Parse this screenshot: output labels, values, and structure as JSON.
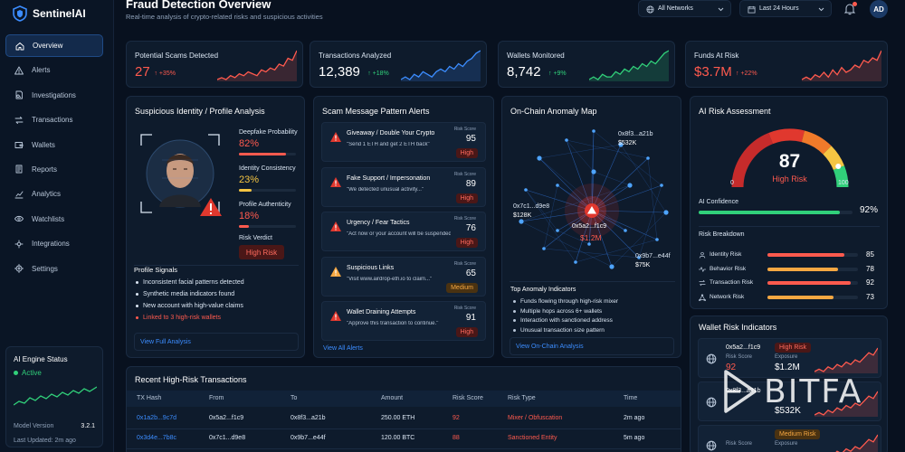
{
  "app": {
    "name": "SentinelAI"
  },
  "nav": [
    {
      "label": "Overview",
      "icon": "home-icon",
      "active": true
    },
    {
      "label": "Alerts",
      "icon": "warning-icon"
    },
    {
      "label": "Investigations",
      "icon": "document-search-icon"
    },
    {
      "label": "Transactions",
      "icon": "transfer-icon"
    },
    {
      "label": "Wallets",
      "icon": "wallet-icon"
    },
    {
      "label": "Reports",
      "icon": "report-icon"
    },
    {
      "label": "Analytics",
      "icon": "analytics-icon"
    },
    {
      "label": "Watchlists",
      "icon": "eye-icon"
    },
    {
      "label": "Integrations",
      "icon": "integration-icon"
    },
    {
      "label": "Settings",
      "icon": "gear-icon"
    }
  ],
  "engine": {
    "title": "AI Engine Status",
    "status": "Active",
    "model_label": "Model Version",
    "model": "3.2.1",
    "updated": "Last Updated: 2m ago"
  },
  "header": {
    "title": "Fraud Detection Overview",
    "subtitle": "Real-time analysis of crypto-related risks and suspicious activities",
    "network": "All Networks",
    "range": "Last 24 Hours",
    "avatar": "AD"
  },
  "kpis": [
    {
      "label": "Potential Scams Detected",
      "value": "27",
      "delta": "↑ +35%",
      "color": "#ff5a4e",
      "trend": [
        3,
        4,
        3,
        5,
        4,
        6,
        5,
        7,
        6,
        5,
        8,
        7,
        9,
        8,
        11,
        10,
        14,
        13,
        18
      ]
    },
    {
      "label": "Transactions Analyzed",
      "value": "12,389",
      "delta": "↑ +18%",
      "color": "#3c8dff",
      "trend": [
        4,
        5,
        4,
        6,
        5,
        7,
        6,
        5,
        7,
        8,
        7,
        9,
        8,
        10,
        9,
        11,
        12,
        14,
        15
      ]
    },
    {
      "label": "Wallets Monitored",
      "value": "8,742",
      "delta": "↑ +9%",
      "color": "#31d07a",
      "trend": [
        5,
        6,
        5,
        7,
        6,
        6,
        8,
        7,
        9,
        8,
        10,
        9,
        11,
        10,
        12,
        11,
        13,
        15,
        16
      ]
    },
    {
      "label": "Funds At Risk",
      "value": "$3.7M",
      "delta": "↑ +22%",
      "color": "#ff5a4e",
      "trend": [
        4,
        5,
        4,
        6,
        5,
        7,
        5,
        8,
        6,
        9,
        7,
        8,
        10,
        9,
        12,
        11,
        13,
        12,
        16
      ]
    }
  ],
  "identity": {
    "title": "Suspicious Identity / Profile Analysis",
    "metrics": [
      {
        "label": "Deepfake Probability",
        "value": "82%",
        "pct": 82,
        "color": "#ff5a4e"
      },
      {
        "label": "Identity Consistency",
        "value": "23%",
        "pct": 23,
        "color": "#f5c542"
      },
      {
        "label": "Profile Authenticity",
        "value": "18%",
        "pct": 18,
        "color": "#ff5a4e"
      }
    ],
    "verdict_label": "Risk Verdict",
    "verdict": "High Risk",
    "signals_title": "Profile Signals",
    "signals": [
      "Inconsistent facial patterns detected",
      "Synthetic media indicators found",
      "New account with high-value claims",
      "Linked to 3 high-risk wallets"
    ],
    "link": "View Full Analysis"
  },
  "scam": {
    "title": "Scam Message Pattern Alerts",
    "score_label": "Risk Score",
    "items": [
      {
        "title": "Giveaway / Double Your Crypto",
        "msg": "\"Send 1 ETH and get 2 ETH back\"",
        "score": "95",
        "level": "High"
      },
      {
        "title": "Fake Support / Impersonation",
        "msg": "\"We detected unusual activity...\"",
        "score": "89",
        "level": "High"
      },
      {
        "title": "Urgency / Fear Tactics",
        "msg": "\"Act now or your account will be suspended.\"",
        "score": "76",
        "level": "High"
      },
      {
        "title": "Suspicious Links",
        "msg": "\"Visit www.airdrop-eth.io to claim...\"",
        "score": "65",
        "level": "Medium"
      },
      {
        "title": "Wallet Draining Attempts",
        "msg": "\"Approve this transaction to continue.\"",
        "score": "91",
        "level": "High"
      }
    ],
    "link": "View All Alerts"
  },
  "map": {
    "title": "On-Chain Anomaly Map",
    "center": {
      "addr": "0x5a2...f1c9",
      "amount": "$1.2M"
    },
    "nodes": [
      {
        "addr": "0x8f3...a21b",
        "amount": "$532K"
      },
      {
        "addr": "0x7c1...d9e8",
        "amount": "$128K"
      },
      {
        "addr": "0x9b7...e44f",
        "amount": "$75K"
      }
    ],
    "ind_title": "Top Anomaly Indicators",
    "indicators": [
      "Funds flowing through high-risk mixer",
      "Multiple hops across 6+ wallets",
      "Interaction with sanctioned address",
      "Unusual transaction size pattern"
    ],
    "link": "View On-Chain Analysis"
  },
  "assessment": {
    "title": "AI Risk Assessment",
    "score": "87",
    "score_value": 87,
    "level": "High Risk",
    "min": "0",
    "max": "100",
    "conf_label": "AI Confidence",
    "confidence": "92%",
    "conf_pct": 92,
    "breakdown_title": "Risk Breakdown",
    "breakdown": [
      {
        "label": "Identity Risk",
        "value": "85",
        "pct": 85,
        "color": "#ff5a4e",
        "icon": "user-icon"
      },
      {
        "label": "Behavior Risk",
        "value": "78",
        "pct": 78,
        "color": "#f5a742",
        "icon": "activity-icon"
      },
      {
        "label": "Transaction Risk",
        "value": "92",
        "pct": 92,
        "color": "#ff5a4e",
        "icon": "transfer-icon"
      },
      {
        "label": "Network Risk",
        "value": "73",
        "pct": 73,
        "color": "#f5a742",
        "icon": "network-icon"
      }
    ]
  },
  "wallets": {
    "title": "Wallet Risk Indicators",
    "items": [
      {
        "addr": "0x5a2...f1c9",
        "level": "High Risk",
        "k1": "Risk Score",
        "v1": "92",
        "k2": "Exposure",
        "v2": "$1.2M"
      },
      {
        "addr": "0x8f3...a21b",
        "level": "",
        "k1": "",
        "v1": "",
        "k2": "",
        "v2": "$532K"
      },
      {
        "addr": "",
        "level": "Medium Risk",
        "k1": "Risk Score",
        "v1": "",
        "k2": "Exposure",
        "v2": ""
      }
    ]
  },
  "transactions": {
    "title": "Recent High-Risk Transactions",
    "headers": [
      "TX Hash",
      "From",
      "To",
      "Amount",
      "Risk Score",
      "Risk Type",
      "Time"
    ],
    "rows": [
      [
        "0x1a2b...9c7d",
        "0x5a2...f1c9",
        "0x8f3...a21b",
        "250.00 ETH",
        "92",
        "Mixer / Obfuscation",
        "2m ago"
      ],
      [
        "0x3d4e...7b8c",
        "0x7c1...d9e8",
        "0x9b7...e44f",
        "120.00 BTC",
        "88",
        "Sanctioned Entity",
        "5m ago"
      ]
    ]
  },
  "watermark": "BITFA"
}
